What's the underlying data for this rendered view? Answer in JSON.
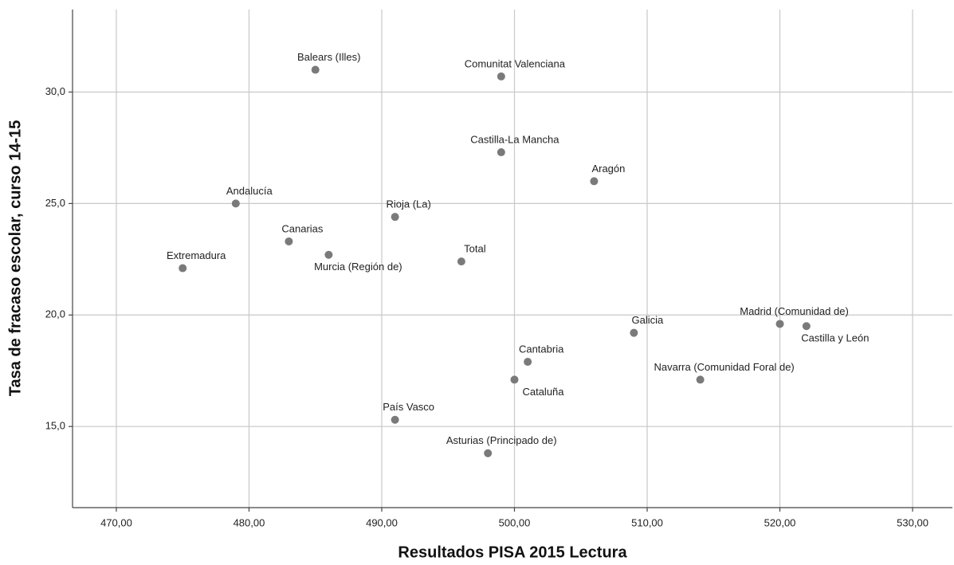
{
  "chart_data": {
    "type": "scatter",
    "xlabel": "Resultados PISA 2015 Lectura",
    "ylabel": "Tasa de fracaso escolar, curso 14-15",
    "labels": [
      "Balears (Illes)",
      "Comunitat Valenciana",
      "Castilla-La Mancha",
      "Aragón",
      "Andalucía",
      "Rioja (La)",
      "Canarias",
      "Murcia (Región de)",
      "Extremadura",
      "Total",
      "Galicia",
      "Madrid (Comunidad de)",
      "Castilla y León",
      "Cantabria",
      "Cataluña",
      "Navarra (Comunidad Foral de)",
      "País Vasco",
      "Asturias (Principado de)"
    ],
    "x": [
      485,
      499,
      499,
      506,
      479,
      491,
      483,
      486,
      475,
      496,
      509,
      520,
      522,
      501,
      500,
      514,
      491,
      498
    ],
    "y": [
      31.0,
      30.7,
      27.3,
      26.0,
      25.0,
      24.4,
      23.3,
      22.7,
      22.1,
      22.4,
      19.2,
      19.6,
      19.5,
      17.9,
      17.1,
      17.1,
      15.3,
      13.8
    ],
    "color": "#7a7a7a",
    "xlim": [
      466.7,
      533.0
    ],
    "ylim": [
      11.36,
      33.7
    ],
    "xticks": [
      {
        "value": 470,
        "label": "470,00"
      },
      {
        "value": 480,
        "label": "480,00"
      },
      {
        "value": 490,
        "label": "490,00"
      },
      {
        "value": 500,
        "label": "500,00"
      },
      {
        "value": 510,
        "label": "510,00"
      },
      {
        "value": 520,
        "label": "520,00"
      },
      {
        "value": 530,
        "label": "530,00"
      }
    ],
    "yticks": [
      {
        "value": 15,
        "label": "15,0"
      },
      {
        "value": 20,
        "label": "20,0"
      },
      {
        "value": 25,
        "label": "25,0"
      },
      {
        "value": 30,
        "label": "30,0"
      }
    ],
    "grid": true
  }
}
